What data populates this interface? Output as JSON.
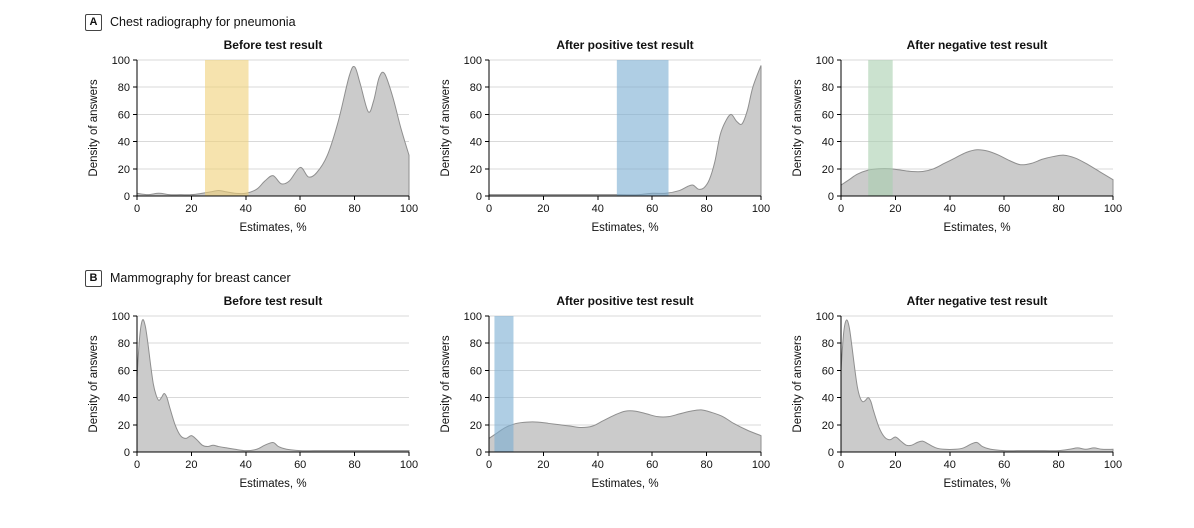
{
  "figure": {
    "background": "#ffffff",
    "axis_color": "#000000",
    "grid_color": "#d9d9d9",
    "curve_fill": "#cbcbcb",
    "curve_stroke": "#8f8f8f"
  },
  "sections": [
    {
      "label": "A",
      "title": "Chest radiography for pneumonia"
    },
    {
      "label": "B",
      "title": "Mammography for breast cancer"
    }
  ],
  "chart_data": [
    {
      "type": "area",
      "title": "Before test result",
      "xlabel": "Estimates, %",
      "ylabel": "Density of answers",
      "xlim": [
        0,
        100
      ],
      "ylim": [
        0,
        100
      ],
      "xticks": [
        0,
        20,
        40,
        60,
        80,
        100
      ],
      "yticks": [
        0,
        20,
        40,
        60,
        80,
        100
      ],
      "grid": true,
      "band": {
        "x0": 25,
        "x1": 41,
        "color": "#F0D078",
        "opacity": 0.6
      },
      "series": [
        {
          "name": "Density of answers",
          "points": [
            [
              0,
              2
            ],
            [
              4,
              1
            ],
            [
              8,
              2
            ],
            [
              12,
              1
            ],
            [
              16,
              1
            ],
            [
              20,
              1
            ],
            [
              24,
              2
            ],
            [
              27,
              3
            ],
            [
              30,
              4
            ],
            [
              33,
              3
            ],
            [
              36,
              2
            ],
            [
              40,
              2
            ],
            [
              44,
              5
            ],
            [
              47,
              11
            ],
            [
              50,
              15
            ],
            [
              53,
              9
            ],
            [
              56,
              11
            ],
            [
              60,
              21
            ],
            [
              63,
              14
            ],
            [
              66,
              17
            ],
            [
              70,
              30
            ],
            [
              74,
              55
            ],
            [
              78,
              88
            ],
            [
              80,
              95
            ],
            [
              82,
              83
            ],
            [
              85,
              62
            ],
            [
              87,
              70
            ],
            [
              89,
              87
            ],
            [
              91,
              90
            ],
            [
              94,
              73
            ],
            [
              97,
              50
            ],
            [
              100,
              30
            ]
          ]
        }
      ]
    },
    {
      "type": "area",
      "title": "After positive test result",
      "xlabel": "Estimates, %",
      "ylabel": "Density of answers",
      "xlim": [
        0,
        100
      ],
      "ylim": [
        0,
        100
      ],
      "xticks": [
        0,
        20,
        40,
        60,
        80,
        100
      ],
      "yticks": [
        0,
        20,
        40,
        60,
        80,
        100
      ],
      "grid": true,
      "band": {
        "x0": 47,
        "x1": 66,
        "color": "#7AADD2",
        "opacity": 0.6
      },
      "series": [
        {
          "name": "Density of answers",
          "points": [
            [
              0,
              1
            ],
            [
              10,
              1
            ],
            [
              20,
              1
            ],
            [
              30,
              1
            ],
            [
              40,
              1
            ],
            [
              48,
              1
            ],
            [
              55,
              1
            ],
            [
              60,
              2
            ],
            [
              65,
              2
            ],
            [
              70,
              4
            ],
            [
              73,
              7
            ],
            [
              75,
              8
            ],
            [
              77,
              5
            ],
            [
              79,
              6
            ],
            [
              81,
              12
            ],
            [
              83,
              25
            ],
            [
              85,
              45
            ],
            [
              87,
              55
            ],
            [
              89,
              60
            ],
            [
              91,
              55
            ],
            [
              93,
              53
            ],
            [
              95,
              63
            ],
            [
              97,
              80
            ],
            [
              100,
              96
            ]
          ]
        }
      ]
    },
    {
      "type": "area",
      "title": "After negative test result",
      "xlabel": "Estimates, %",
      "ylabel": "Density of answers",
      "xlim": [
        0,
        100
      ],
      "ylim": [
        0,
        100
      ],
      "xticks": [
        0,
        20,
        40,
        60,
        80,
        100
      ],
      "yticks": [
        0,
        20,
        40,
        60,
        80,
        100
      ],
      "grid": true,
      "band": {
        "x0": 10,
        "x1": 19,
        "color": "#A8CFAF",
        "opacity": 0.6
      },
      "series": [
        {
          "name": "Density of answers",
          "points": [
            [
              0,
              8
            ],
            [
              3,
              12
            ],
            [
              6,
              16
            ],
            [
              10,
              19
            ],
            [
              14,
              20
            ],
            [
              18,
              20
            ],
            [
              22,
              19
            ],
            [
              26,
              18
            ],
            [
              30,
              18
            ],
            [
              34,
              20
            ],
            [
              38,
              24
            ],
            [
              42,
              28
            ],
            [
              46,
              32
            ],
            [
              50,
              34
            ],
            [
              54,
              33
            ],
            [
              58,
              30
            ],
            [
              62,
              26
            ],
            [
              66,
              23
            ],
            [
              70,
              24
            ],
            [
              74,
              27
            ],
            [
              78,
              29
            ],
            [
              82,
              30
            ],
            [
              86,
              28
            ],
            [
              90,
              24
            ],
            [
              95,
              18
            ],
            [
              100,
              12
            ]
          ]
        }
      ]
    },
    {
      "type": "area",
      "title": "Before test result",
      "xlabel": "Estimates, %",
      "ylabel": "Density of answers",
      "xlim": [
        0,
        100
      ],
      "ylim": [
        0,
        100
      ],
      "xticks": [
        0,
        20,
        40,
        60,
        80,
        100
      ],
      "yticks": [
        0,
        20,
        40,
        60,
        80,
        100
      ],
      "grid": true,
      "band": null,
      "series": [
        {
          "name": "Density of answers",
          "points": [
            [
              0,
              55
            ],
            [
              1,
              85
            ],
            [
              2,
              97
            ],
            [
              3,
              93
            ],
            [
              4,
              80
            ],
            [
              5,
              64
            ],
            [
              6,
              50
            ],
            [
              7,
              42
            ],
            [
              8,
              38
            ],
            [
              9,
              40
            ],
            [
              10,
              43
            ],
            [
              11,
              40
            ],
            [
              12,
              33
            ],
            [
              14,
              20
            ],
            [
              16,
              12
            ],
            [
              18,
              10
            ],
            [
              20,
              12
            ],
            [
              22,
              9
            ],
            [
              24,
              5
            ],
            [
              26,
              4
            ],
            [
              28,
              5
            ],
            [
              30,
              4
            ],
            [
              33,
              3
            ],
            [
              36,
              2
            ],
            [
              40,
              1
            ],
            [
              44,
              2
            ],
            [
              47,
              5
            ],
            [
              50,
              7
            ],
            [
              52,
              4
            ],
            [
              55,
              2
            ],
            [
              60,
              1
            ],
            [
              65,
              1
            ],
            [
              70,
              1
            ],
            [
              75,
              1
            ],
            [
              80,
              1
            ],
            [
              85,
              1
            ],
            [
              90,
              1
            ],
            [
              95,
              1
            ],
            [
              100,
              1
            ]
          ]
        }
      ]
    },
    {
      "type": "area",
      "title": "After positive test result",
      "xlabel": "Estimates, %",
      "ylabel": "Density of answers",
      "xlim": [
        0,
        100
      ],
      "ylim": [
        0,
        100
      ],
      "xticks": [
        0,
        20,
        40,
        60,
        80,
        100
      ],
      "yticks": [
        0,
        20,
        40,
        60,
        80,
        100
      ],
      "grid": true,
      "band": {
        "x0": 2,
        "x1": 9,
        "color": "#7AADD2",
        "opacity": 0.6
      },
      "series": [
        {
          "name": "Density of answers",
          "points": [
            [
              0,
              10
            ],
            [
              3,
              14
            ],
            [
              6,
              18
            ],
            [
              10,
              21
            ],
            [
              14,
              22
            ],
            [
              18,
              22
            ],
            [
              22,
              21
            ],
            [
              26,
              20
            ],
            [
              30,
              19
            ],
            [
              34,
              18
            ],
            [
              38,
              19
            ],
            [
              42,
              23
            ],
            [
              46,
              27
            ],
            [
              50,
              30
            ],
            [
              54,
              30
            ],
            [
              58,
              28
            ],
            [
              62,
              26
            ],
            [
              66,
              26
            ],
            [
              70,
              28
            ],
            [
              74,
              30
            ],
            [
              78,
              31
            ],
            [
              82,
              29
            ],
            [
              86,
              26
            ],
            [
              90,
              21
            ],
            [
              95,
              16
            ],
            [
              100,
              12
            ]
          ]
        }
      ]
    },
    {
      "type": "area",
      "title": "After negative test result",
      "xlabel": "Estimates, %",
      "ylabel": "Density of answers",
      "xlim": [
        0,
        100
      ],
      "ylim": [
        0,
        100
      ],
      "xticks": [
        0,
        20,
        40,
        60,
        80,
        100
      ],
      "yticks": [
        0,
        20,
        40,
        60,
        80,
        100
      ],
      "grid": true,
      "band": null,
      "series": [
        {
          "name": "Density of answers",
          "points": [
            [
              0,
              60
            ],
            [
              1,
              88
            ],
            [
              2,
              97
            ],
            [
              3,
              92
            ],
            [
              4,
              78
            ],
            [
              5,
              62
            ],
            [
              6,
              48
            ],
            [
              7,
              40
            ],
            [
              8,
              37
            ],
            [
              9,
              38
            ],
            [
              10,
              40
            ],
            [
              11,
              37
            ],
            [
              12,
              30
            ],
            [
              14,
              18
            ],
            [
              16,
              11
            ],
            [
              18,
              9
            ],
            [
              20,
              11
            ],
            [
              22,
              8
            ],
            [
              24,
              5
            ],
            [
              26,
              5
            ],
            [
              28,
              7
            ],
            [
              30,
              8
            ],
            [
              32,
              6
            ],
            [
              35,
              3
            ],
            [
              38,
              2
            ],
            [
              42,
              2
            ],
            [
              45,
              3
            ],
            [
              48,
              6
            ],
            [
              50,
              7
            ],
            [
              52,
              4
            ],
            [
              55,
              2
            ],
            [
              60,
              1
            ],
            [
              65,
              1
            ],
            [
              70,
              1
            ],
            [
              75,
              1
            ],
            [
              80,
              1
            ],
            [
              84,
              2
            ],
            [
              87,
              3
            ],
            [
              90,
              2
            ],
            [
              93,
              3
            ],
            [
              96,
              2
            ],
            [
              100,
              2
            ]
          ]
        }
      ]
    }
  ]
}
